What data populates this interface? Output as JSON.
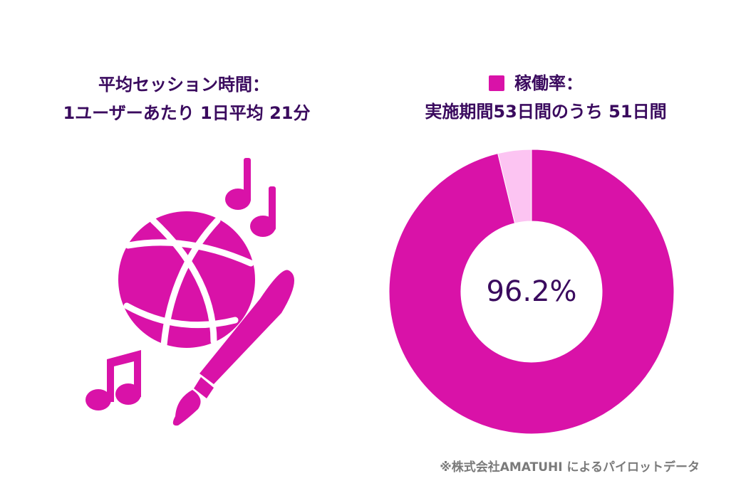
{
  "left_panel": {
    "title_lines": [
      "平均セッション時間：",
      "1ユーザーあたり 1日平均 21分"
    ]
  },
  "chart_data": {
    "type": "donut",
    "legend": "稼働率：",
    "subtitle": "実施期間53日間のうち 51日間",
    "values": [
      96.2,
      3.8
    ],
    "value_labels": [
      "96.2%",
      null
    ],
    "colors": [
      "#d912a8",
      "#fcc4f2"
    ]
  },
  "footnote": "※株式会社AMATUHI によるパイロットデータ"
}
